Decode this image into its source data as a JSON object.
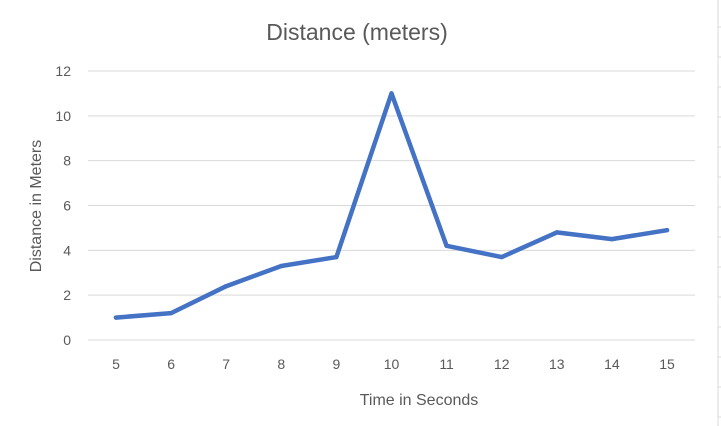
{
  "chart_data": {
    "type": "line",
    "title": "Distance (meters)",
    "xlabel": "Time in Seconds",
    "ylabel": "Distance in Meters",
    "x": [
      5,
      6,
      7,
      8,
      9,
      10,
      11,
      12,
      13,
      14,
      15
    ],
    "series": [
      {
        "values": [
          1.0,
          1.2,
          2.4,
          3.3,
          3.7,
          11.0,
          4.2,
          3.7,
          4.8,
          4.5,
          4.9
        ],
        "color": "#4472c4"
      }
    ],
    "ylim": [
      0,
      12
    ],
    "yticks": [
      0,
      2,
      4,
      6,
      8,
      10,
      12
    ],
    "grid": true,
    "legend": "none"
  }
}
